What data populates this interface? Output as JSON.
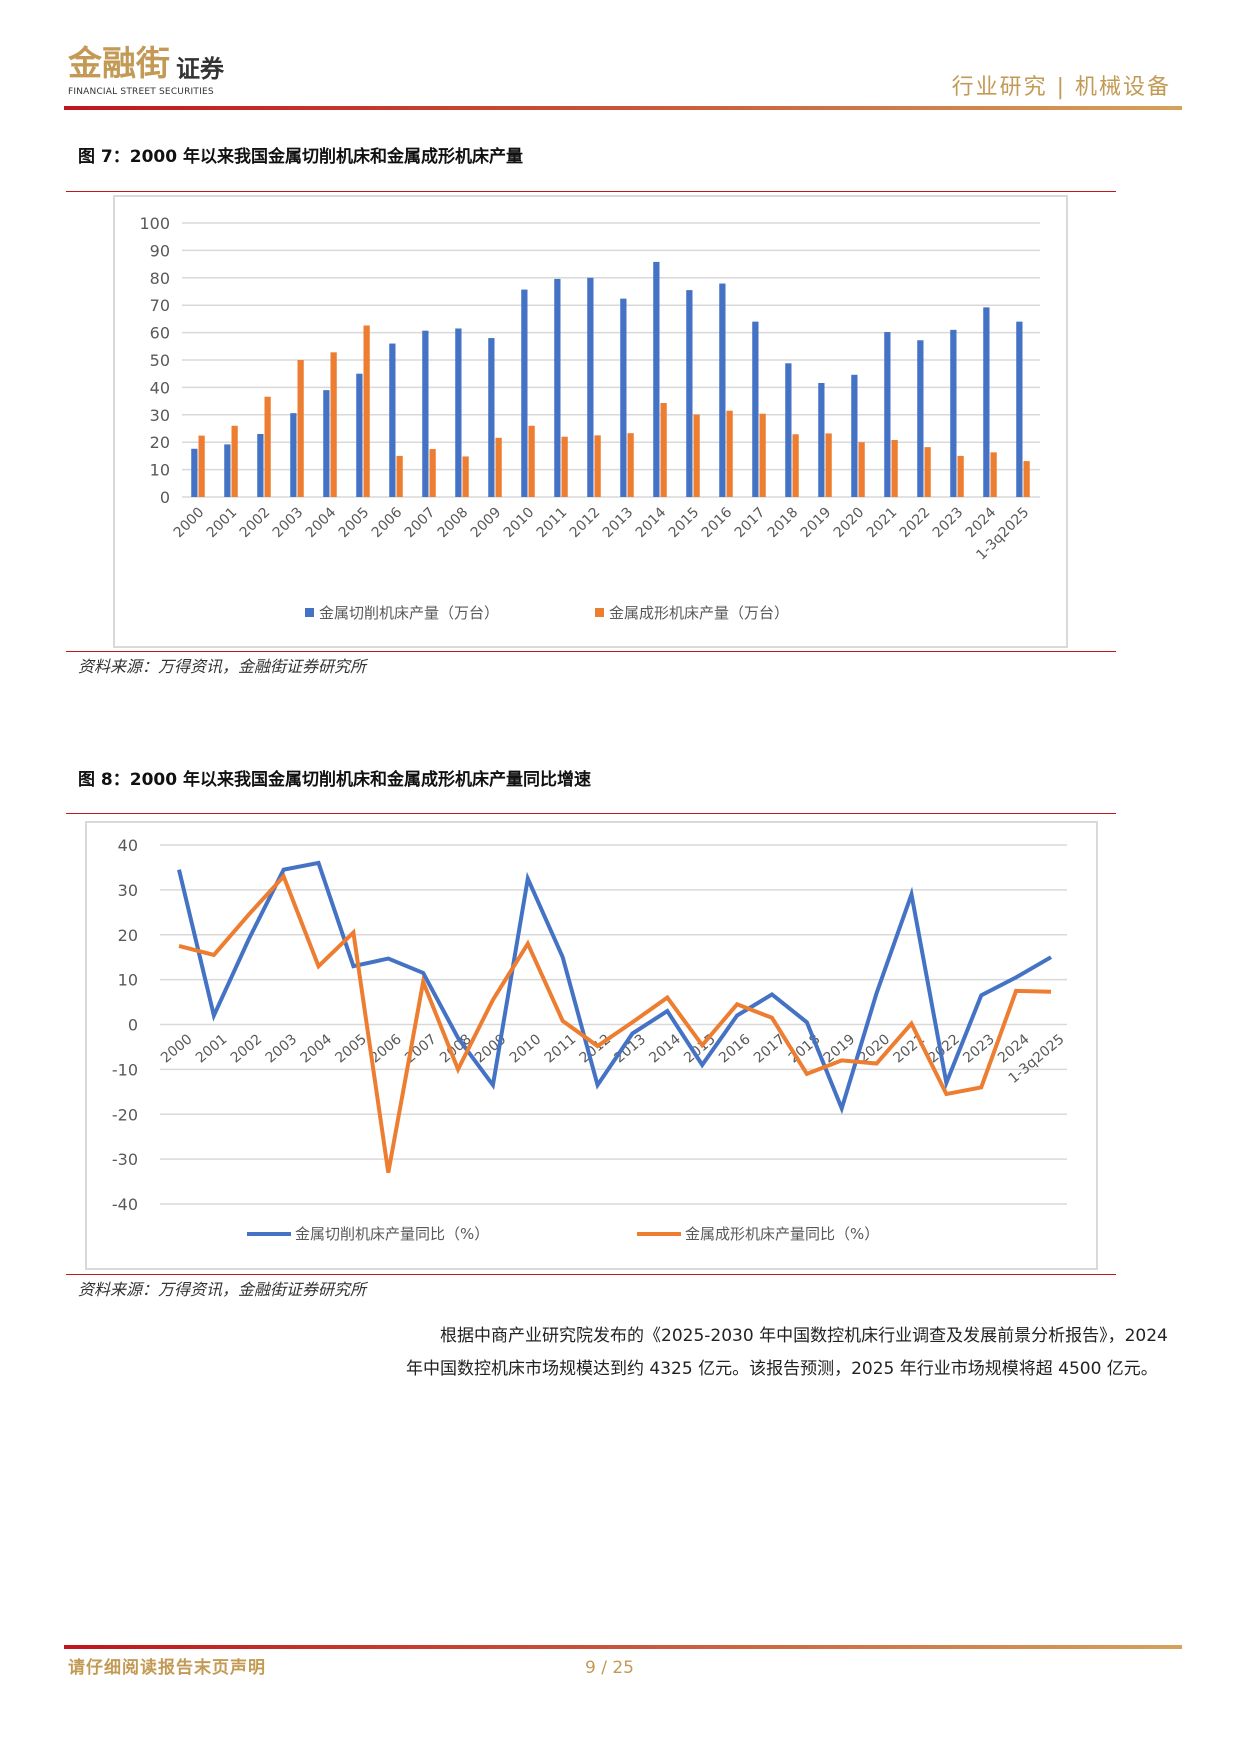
{
  "header": {
    "logo_cn": "金融街",
    "logo_cn_suffix": "证券",
    "logo_en": "FINANCIAL STREET SECURITIES",
    "section": "行业研究 | 机械设备"
  },
  "figure7": {
    "title": "图 7：2000 年以来我国金属切削机床和金属成形机床产量",
    "source": "资料来源：万得资讯，金融街证券研究所"
  },
  "figure8": {
    "title": "图 8：2000 年以来我国金属切削机床和金属成形机床产量同比增速",
    "source": "资料来源：万得资讯，金融街证券研究所"
  },
  "body": {
    "paragraph": "根据中商产业研究院发布的《2025-2030 年中国数控机床行业调查及发展前景分析报告》，2024 年中国数控机床市场规模达到约 4325 亿元。该报告预测，2025 年行业市场规模将超 4500 亿元。"
  },
  "footer": {
    "disclaimer": "请仔细阅读报告末页声明",
    "page": "9 / 25"
  },
  "colors": {
    "blue": "#4472c4",
    "orange": "#ed7d31",
    "gold": "#c39a55",
    "red": "#c0161c"
  },
  "chart_data": [
    {
      "type": "bar",
      "title": "",
      "categories": [
        "2000",
        "2001",
        "2002",
        "2003",
        "2004",
        "2005",
        "2006",
        "2007",
        "2008",
        "2009",
        "2010",
        "2011",
        "2012",
        "2013",
        "2014",
        "2015",
        "2016",
        "2017",
        "2018",
        "2019",
        "2020",
        "2021",
        "2022",
        "2023",
        "2024",
        "1-3q2025"
      ],
      "series": [
        {
          "name": "金属切削机床产量（万台）",
          "color": "#4472c4",
          "values": [
            17.6,
            19.2,
            23,
            30.6,
            39,
            45,
            56,
            60.7,
            61.5,
            58,
            75.7,
            79.6,
            80,
            72.4,
            85.8,
            75.5,
            77.9,
            64,
            48.8,
            41.6,
            44.6,
            60.2,
            57.2,
            61,
            69.2,
            64
          ]
        },
        {
          "name": "金属成形机床产量（万台）",
          "color": "#ed7d31",
          "values": [
            22.4,
            26,
            36.6,
            50,
            52.8,
            62.6,
            15,
            17.5,
            14.8,
            21.6,
            26,
            22,
            22.5,
            23.3,
            34.3,
            30.1,
            31.5,
            30.4,
            22.9,
            23.2,
            20,
            20.8,
            18.2,
            15,
            16.3,
            13.1
          ]
        }
      ],
      "ylim": [
        0,
        100
      ],
      "yticks": [
        0,
        10,
        20,
        30,
        40,
        50,
        60,
        70,
        80,
        90,
        100
      ],
      "grid": true,
      "legend": "bottom"
    },
    {
      "type": "line",
      "title": "",
      "categories": [
        "2000",
        "2001",
        "2002",
        "2003",
        "2004",
        "2005",
        "2006",
        "2007",
        "2008",
        "2009",
        "2010",
        "2011",
        "2012",
        "2013",
        "2014",
        "2015",
        "2016",
        "2017",
        "2018",
        "2019",
        "2020",
        "2021",
        "2022",
        "2023",
        "2024",
        "1-3q2025"
      ],
      "series": [
        {
          "name": "金属切削机床产量同比（%）",
          "color": "#4472c4",
          "values": [
            34.5,
            2,
            19,
            34.5,
            36,
            13,
            14.7,
            11.5,
            -3,
            -13.5,
            32.5,
            15,
            -13.5,
            -2,
            3,
            -9,
            2,
            6.7,
            0.5,
            -18.7,
            7,
            29,
            -13,
            6.5,
            10.5,
            15
          ]
        },
        {
          "name": "金属成形机床产量同比（%）",
          "color": "#ed7d31",
          "values": [
            17.5,
            15.5,
            24.5,
            33,
            13,
            20.5,
            -33,
            9.5,
            -10,
            5.5,
            18,
            0.8,
            -4.8,
            0.5,
            6,
            -4.6,
            4.5,
            1.5,
            -11,
            -8,
            -8.7,
            0.2,
            -15.5,
            -14,
            7.5,
            7.3
          ]
        }
      ],
      "ylim": [
        -40,
        40
      ],
      "yticks": [
        -40,
        -30,
        -20,
        -10,
        0,
        10,
        20,
        30,
        40
      ],
      "grid": true,
      "legend": "bottom"
    }
  ]
}
